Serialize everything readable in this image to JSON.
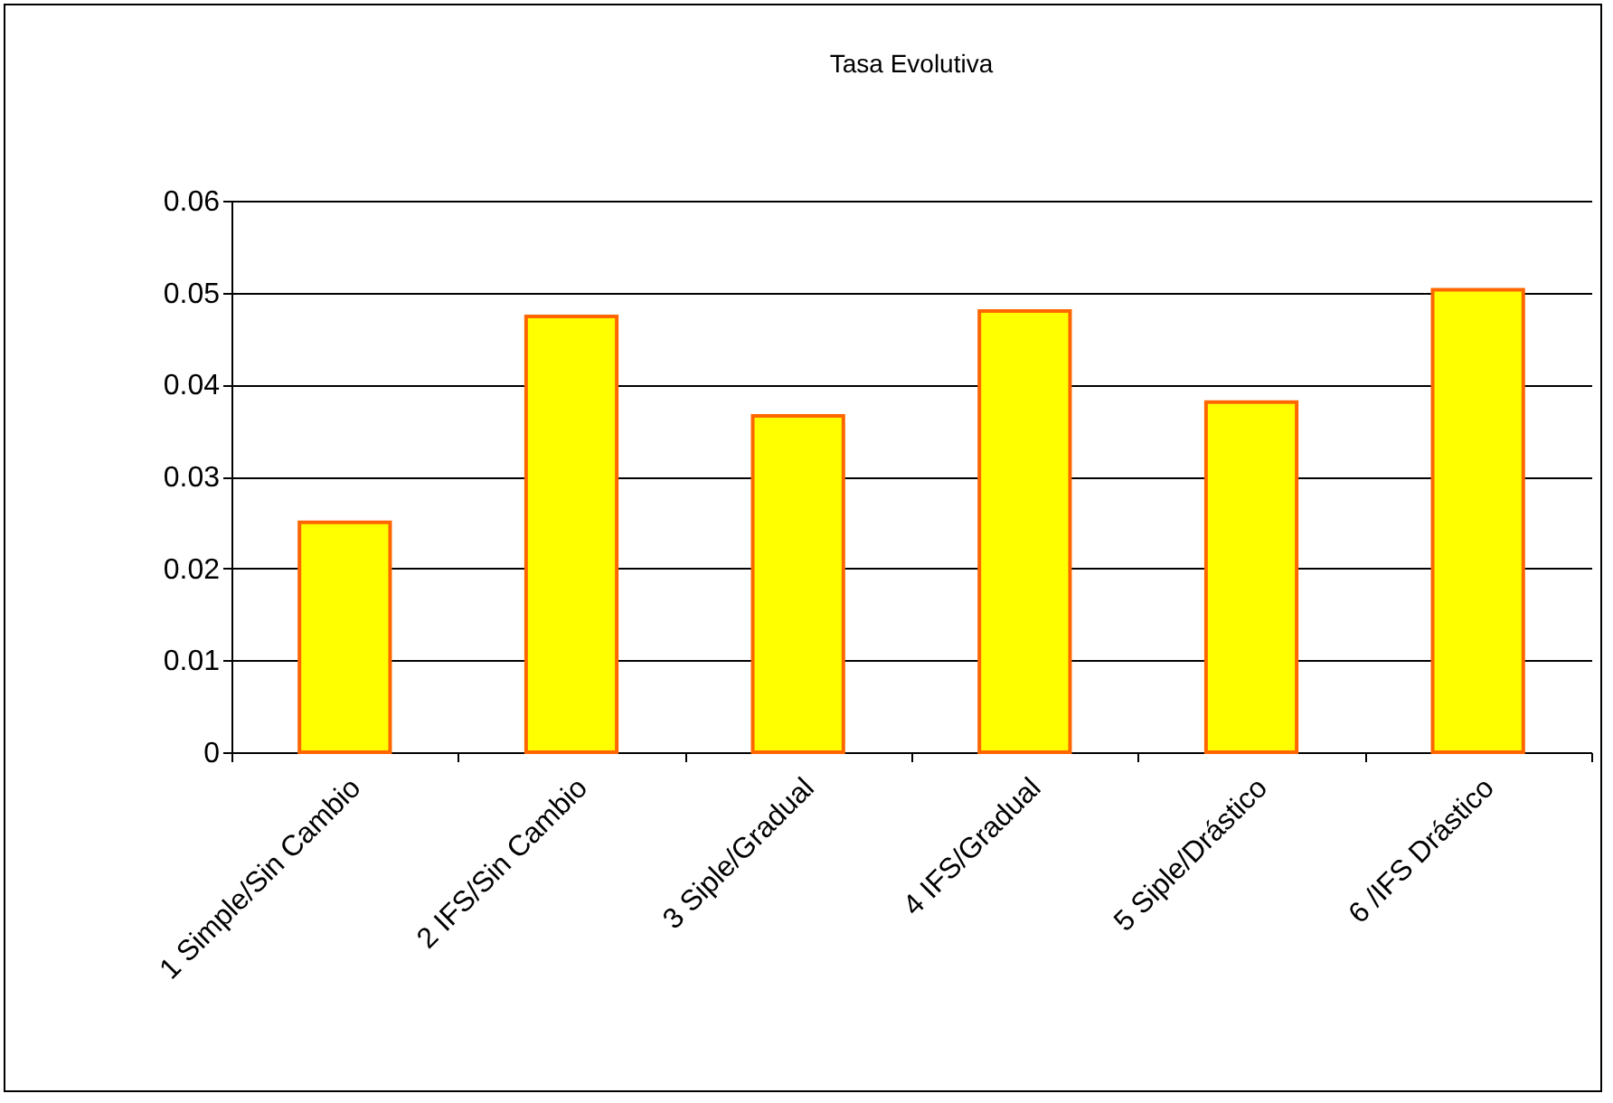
{
  "chart_data": {
    "type": "bar",
    "title": "Tasa Evolutiva",
    "categories": [
      "1 Simple/Sin Cambio",
      "2 IFS/Sin Cambio",
      "3 Siple/Gradual",
      "4 IFS/Gradual",
      "5 Siple/Drástico",
      "6 /IFS Drástico"
    ],
    "values": [
      0.025,
      0.0474,
      0.0366,
      0.048,
      0.0381,
      0.0503
    ],
    "color": "#ffff00",
    "ylim": [
      0,
      0.06
    ],
    "yticks": [
      0,
      0.01,
      0.02,
      0.03,
      0.04,
      0.05,
      0.06
    ],
    "grid": "y"
  }
}
